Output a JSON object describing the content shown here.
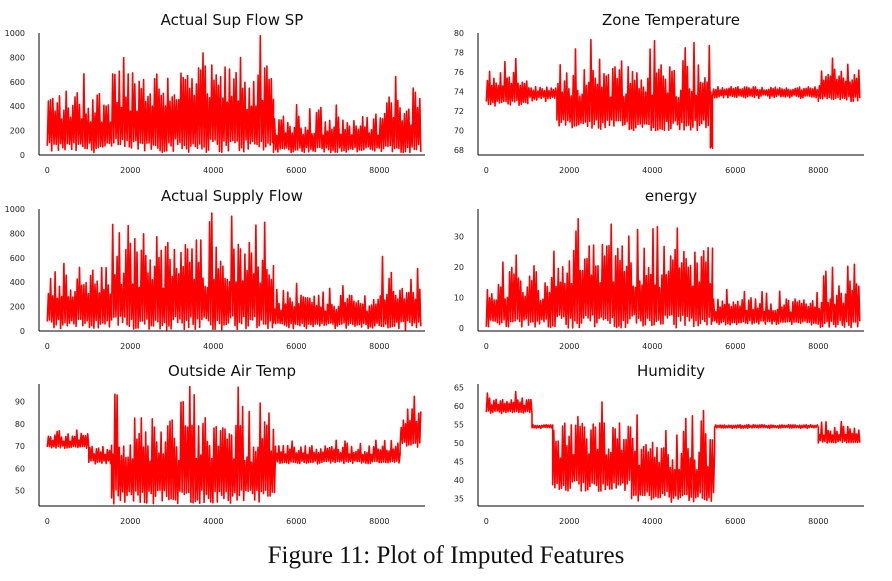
{
  "caption": "Figure 11: Plot of Imputed Features",
  "style": {
    "line_color": "#ff0000",
    "axis_color": "#000000",
    "background": "#ffffff"
  },
  "chart_data": [
    {
      "type": "line",
      "title": "Actual Sup Flow SP",
      "xlim": [
        -200,
        9100
      ],
      "ylim": [
        0,
        1000
      ],
      "xticks": [
        0,
        2000,
        4000,
        6000,
        8000
      ],
      "yticks": [
        0,
        200,
        400,
        600,
        800,
        1000
      ],
      "series": [
        {
          "segments": [
            {
              "x": [
                0,
                1550
              ],
              "min": 20,
              "max": 720
            },
            {
              "x": [
                1550,
                5450
              ],
              "min": 20,
              "max": 980
            },
            {
              "x": [
                5450,
                8050
              ],
              "min": 20,
              "max": 420
            },
            {
              "x": [
                8050,
                9000
              ],
              "min": 20,
              "max": 650
            }
          ]
        }
      ]
    },
    {
      "type": "line",
      "title": "Zone Temperature",
      "xlim": [
        -200,
        9100
      ],
      "ylim": [
        67.5,
        80
      ],
      "xticks": [
        0,
        2000,
        4000,
        6000,
        8000
      ],
      "yticks": [
        68,
        70,
        72,
        74,
        76,
        78,
        80
      ],
      "series": [
        {
          "segments": [
            {
              "x": [
                0,
                1000
              ],
              "min": 72.5,
              "max": 77.5
            },
            {
              "x": [
                1000,
                1700
              ],
              "min": 73,
              "max": 74.5
            },
            {
              "x": [
                1700,
                5400
              ],
              "min": 70,
              "max": 79.5
            },
            {
              "x": [
                5400,
                5450
              ],
              "min": 68,
              "max": 76
            },
            {
              "x": [
                5450,
                8000
              ],
              "min": 73.3,
              "max": 74.5
            },
            {
              "x": [
                8000,
                9000
              ],
              "min": 73,
              "max": 77.5
            }
          ]
        }
      ]
    },
    {
      "type": "line",
      "title": "Actual Supply Flow",
      "xlim": [
        -200,
        9100
      ],
      "ylim": [
        0,
        1000
      ],
      "xticks": [
        0,
        2000,
        4000,
        6000,
        8000
      ],
      "yticks": [
        0,
        200,
        400,
        600,
        800,
        1000
      ],
      "series": [
        {
          "segments": [
            {
              "x": [
                0,
                1550
              ],
              "min": 20,
              "max": 700
            },
            {
              "x": [
                1550,
                5450
              ],
              "min": 10,
              "max": 980
            },
            {
              "x": [
                5450,
                8050
              ],
              "min": 20,
              "max": 420
            },
            {
              "x": [
                8050,
                9000
              ],
              "min": 10,
              "max": 650
            }
          ]
        }
      ]
    },
    {
      "type": "line",
      "title": "energy",
      "xlim": [
        -200,
        9100
      ],
      "ylim": [
        -1,
        39
      ],
      "xticks": [
        0,
        2000,
        4000,
        6000,
        8000
      ],
      "yticks": [
        0,
        10,
        20,
        30
      ],
      "series": [
        {
          "segments": [
            {
              "x": [
                0,
                1550
              ],
              "min": 0,
              "max": 25
            },
            {
              "x": [
                1550,
                5450
              ],
              "min": 0,
              "max": 37
            },
            {
              "x": [
                5450,
                8050
              ],
              "min": 1,
              "max": 13
            },
            {
              "x": [
                8050,
                9000
              ],
              "min": 0,
              "max": 21
            }
          ]
        }
      ]
    },
    {
      "type": "line",
      "title": "Outside Air Temp",
      "xlim": [
        -200,
        9100
      ],
      "ylim": [
        43,
        98
      ],
      "xticks": [
        0,
        2000,
        4000,
        6000,
        8000
      ],
      "yticks": [
        50,
        60,
        70,
        80,
        90
      ],
      "series": [
        {
          "segments": [
            {
              "x": [
                0,
                1000
              ],
              "min": 69,
              "max": 78
            },
            {
              "x": [
                1000,
                1550
              ],
              "min": 62,
              "max": 74
            },
            {
              "x": [
                1550,
                5500
              ],
              "min": 44,
              "max": 97
            },
            {
              "x": [
                5500,
                8500
              ],
              "min": 62,
              "max": 73
            },
            {
              "x": [
                8500,
                9000
              ],
              "min": 69,
              "max": 93
            }
          ]
        }
      ]
    },
    {
      "type": "line",
      "title": "Humidity",
      "xlim": [
        -200,
        9100
      ],
      "ylim": [
        33,
        66
      ],
      "xticks": [
        0,
        2000,
        4000,
        6000,
        8000
      ],
      "yticks": [
        35,
        40,
        45,
        50,
        55,
        60,
        65
      ],
      "series": [
        {
          "segments": [
            {
              "x": [
                0,
                1100
              ],
              "min": 58,
              "max": 64
            },
            {
              "x": [
                1100,
                1600
              ],
              "min": 54,
              "max": 55
            },
            {
              "x": [
                1600,
                3500
              ],
              "min": 37,
              "max": 62
            },
            {
              "x": [
                3500,
                5500
              ],
              "min": 34,
              "max": 59
            },
            {
              "x": [
                5500,
                8000
              ],
              "min": 54,
              "max": 55
            },
            {
              "x": [
                8000,
                9000
              ],
              "min": 50,
              "max": 56
            }
          ]
        }
      ]
    }
  ]
}
